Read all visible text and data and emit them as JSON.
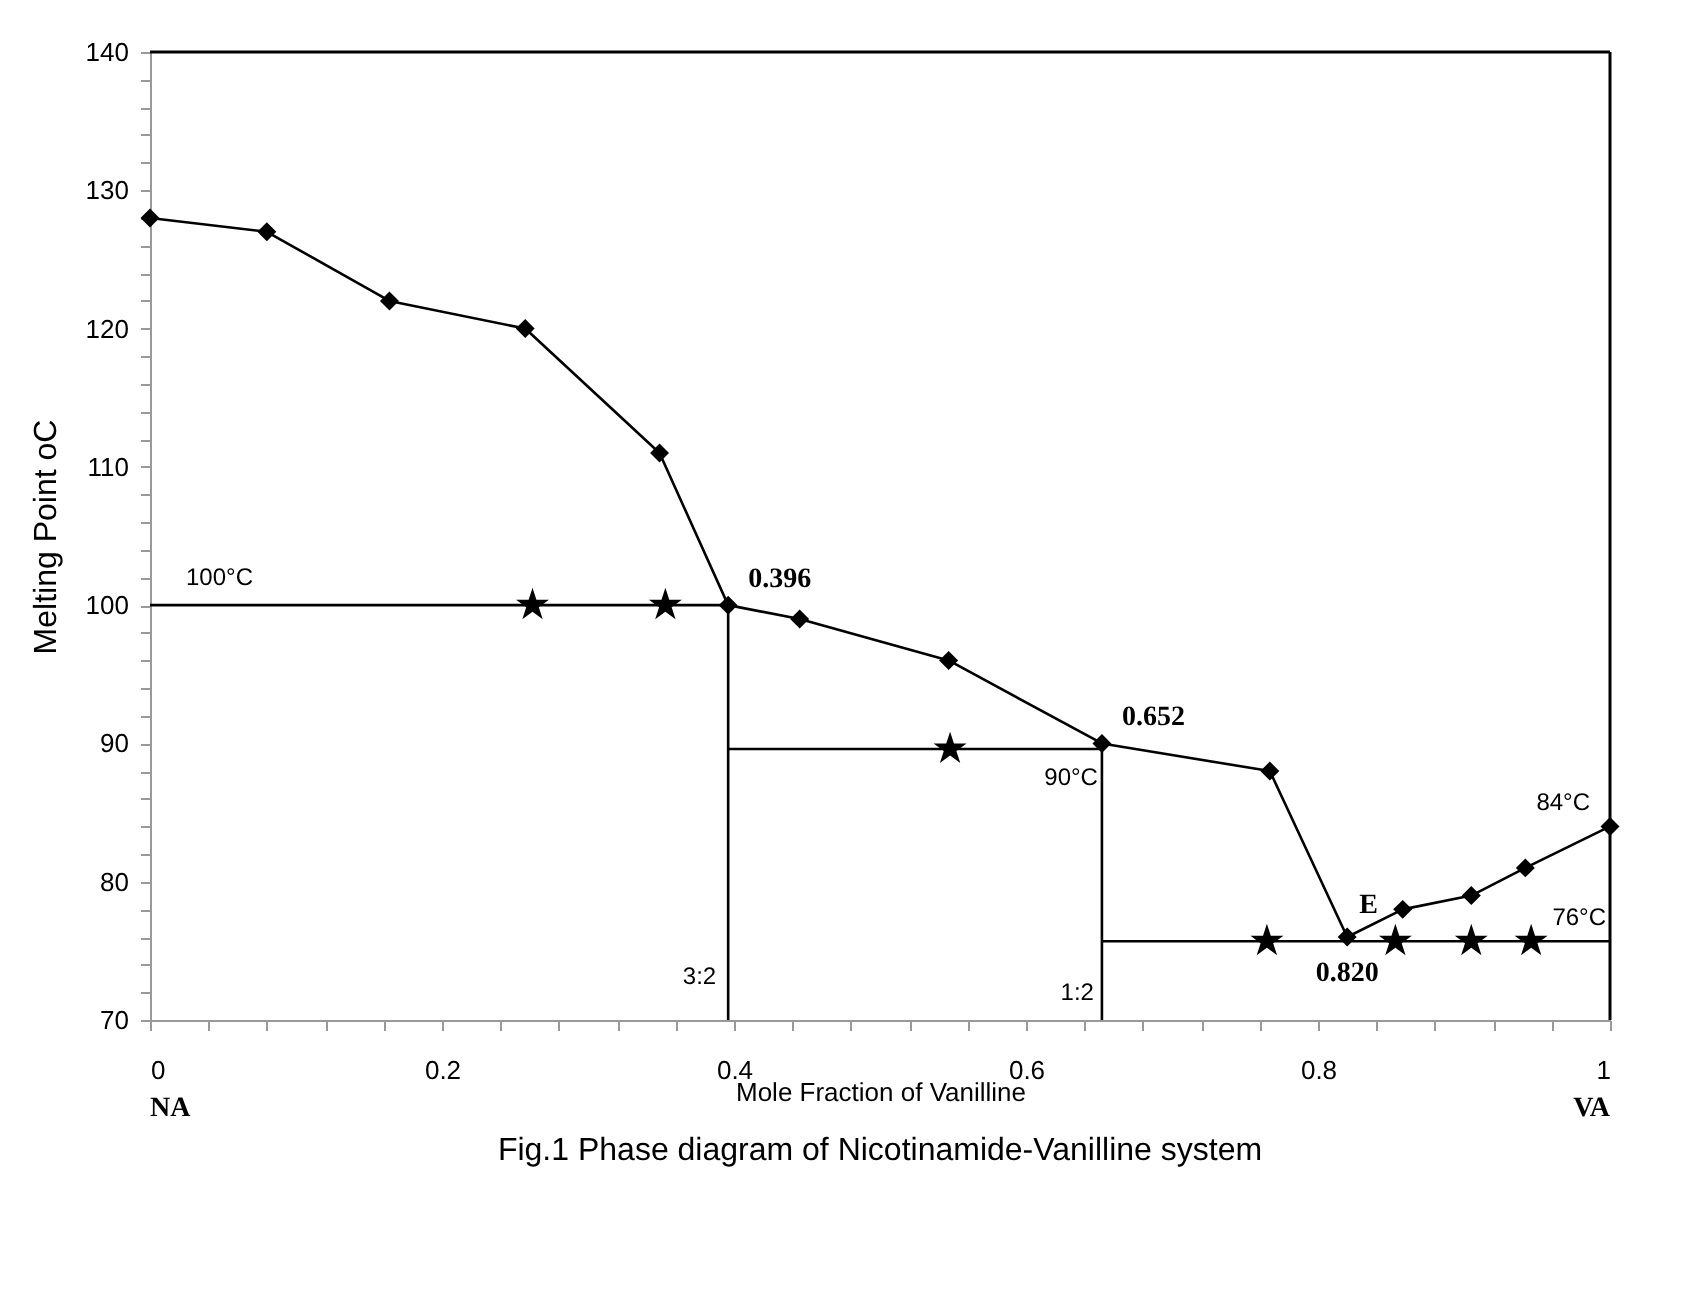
{
  "chart_data": {
    "type": "line",
    "title": "Fig.1 Phase diagram of Nicotinamide-Vanilline system",
    "xlabel": "Mole Fraction of Vanilline",
    "ylabel": "Melting Point oC",
    "xlim": [
      0,
      1
    ],
    "ylim": [
      70,
      140
    ],
    "xticks": [
      0,
      {
        "value": 0.04,
        "label": null
      },
      {
        "value": 0.08,
        "label": null
      },
      {
        "value": 0.12,
        "label": null
      },
      {
        "value": 0.16,
        "label": null
      },
      0.2,
      {
        "value": 0.24,
        "label": null
      },
      {
        "value": 0.28,
        "label": null
      },
      {
        "value": 0.32,
        "label": null
      },
      {
        "value": 0.36,
        "label": null
      },
      0.4,
      {
        "value": 0.44,
        "label": null
      },
      {
        "value": 0.48,
        "label": null
      },
      {
        "value": 0.52,
        "label": null
      },
      {
        "value": 0.56,
        "label": null
      },
      0.6,
      {
        "value": 0.64,
        "label": null
      },
      {
        "value": 0.68,
        "label": null
      },
      {
        "value": 0.72,
        "label": null
      },
      {
        "value": 0.76,
        "label": null
      },
      0.8,
      {
        "value": 0.84,
        "label": null
      },
      {
        "value": 0.88,
        "label": null
      },
      {
        "value": 0.92,
        "label": null
      },
      {
        "value": 0.96,
        "label": null
      },
      1
    ],
    "yticks": [
      70,
      {
        "value": 72,
        "label": null
      },
      {
        "value": 74,
        "label": null
      },
      {
        "value": 76,
        "label": null
      },
      {
        "value": 78,
        "label": null
      },
      80,
      {
        "value": 82,
        "label": null
      },
      {
        "value": 84,
        "label": null
      },
      {
        "value": 86,
        "label": null
      },
      {
        "value": 88,
        "label": null
      },
      90,
      {
        "value": 92,
        "label": null
      },
      {
        "value": 94,
        "label": null
      },
      {
        "value": 96,
        "label": null
      },
      {
        "value": 98,
        "label": null
      },
      100,
      {
        "value": 102,
        "label": null
      },
      {
        "value": 104,
        "label": null
      },
      {
        "value": 106,
        "label": null
      },
      {
        "value": 108,
        "label": null
      },
      110,
      {
        "value": 112,
        "label": null
      },
      {
        "value": 114,
        "label": null
      },
      {
        "value": 116,
        "label": null
      },
      {
        "value": 118,
        "label": null
      },
      120,
      {
        "value": 122,
        "label": null
      },
      {
        "value": 124,
        "label": null
      },
      {
        "value": 126,
        "label": null
      },
      {
        "value": 128,
        "label": null
      },
      130,
      {
        "value": 132,
        "label": null
      },
      {
        "value": 134,
        "label": null
      },
      {
        "value": 136,
        "label": null
      },
      {
        "value": 138,
        "label": null
      },
      140
    ],
    "grid": false,
    "series": [
      {
        "type": "line",
        "marker": "diamond",
        "color": "#000000",
        "x": [
          0,
          0.08,
          0.164,
          0.257,
          0.349,
          0.396,
          0.445,
          0.547,
          0.652,
          0.767,
          0.82,
          0.858,
          0.905,
          0.942,
          1
        ],
        "values": [
          128,
          127,
          122,
          120,
          111,
          100,
          99,
          96,
          90,
          88,
          76,
          78,
          79,
          81,
          84
        ]
      },
      {
        "type": "scatter",
        "marker": "star",
        "color": "#000000",
        "x": [
          0.262,
          0.353,
          0.548,
          0.765,
          0.853,
          0.905,
          0.946
        ],
        "values": [
          100,
          100,
          89.6,
          75.7,
          75.7,
          75.7,
          75.7
        ]
      },
      {
        "type": "line",
        "marker": "none",
        "color": "#000000",
        "x": [
          0,
          0.396
        ],
        "values": [
          100,
          100
        ]
      },
      {
        "type": "line",
        "marker": "none",
        "color": "#000000",
        "x": [
          0.396,
          0.396
        ],
        "values": [
          70,
          100
        ]
      },
      {
        "type": "line",
        "marker": "none",
        "color": "#000000",
        "x": [
          0.396,
          0.652
        ],
        "values": [
          89.6,
          89.6
        ]
      },
      {
        "type": "line",
        "marker": "none",
        "color": "#000000",
        "x": [
          0.652,
          0.652
        ],
        "values": [
          70,
          90
        ]
      },
      {
        "type": "line",
        "marker": "none",
        "color": "#000000",
        "x": [
          0.652,
          1
        ],
        "values": [
          75.7,
          75.7
        ]
      }
    ],
    "annotations": [
      {
        "text": "100°C",
        "x": 0,
        "y": 100
      },
      {
        "text": "0.396",
        "x": 0.396,
        "y": 100
      },
      {
        "text": "0.652",
        "x": 0.652,
        "y": 90
      },
      {
        "text": "90°C",
        "x": 0.652,
        "y": 89.6
      },
      {
        "text": "E",
        "x": 0.82,
        "y": 76
      },
      {
        "text": "0.820",
        "x": 0.82,
        "y": 76
      },
      {
        "text": "76°C",
        "x": 1,
        "y": 75.7
      },
      {
        "text": "84°C",
        "x": 1,
        "y": 84
      },
      {
        "text": "3:2",
        "x": 0.396,
        "y": 70
      },
      {
        "text": "1:2",
        "x": 0.652,
        "y": 70
      },
      "NA",
      "VA"
    ]
  }
}
